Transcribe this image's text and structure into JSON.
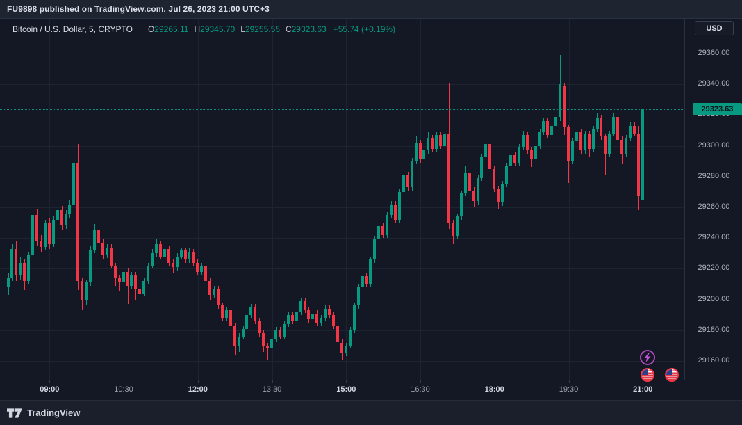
{
  "published_bar": {
    "text": "FU9898 published on TradingView.com, Jul 26, 2023 21:00 UTC+3"
  },
  "legend": {
    "symbol": "Bitcoin / U.S. Dollar, 5, CRYPTO",
    "o": {
      "label": "O",
      "value": "29265.11"
    },
    "h": {
      "label": "H",
      "value": "29345.70"
    },
    "l": {
      "label": "L",
      "value": "29255.55"
    },
    "c": {
      "label": "C",
      "value": "29323.63"
    },
    "change": "+55.74 (+0.19%)"
  },
  "currency_button": {
    "label": "USD"
  },
  "price_tag": {
    "text": "29323.63"
  },
  "footer": {
    "brand": "TradingView"
  },
  "colors": {
    "up": "#089981",
    "down": "#f23645",
    "background": "#141824",
    "grid": "#1e2330",
    "axis_text": "#aeb2bd",
    "price_line": "#089981",
    "event_purple": "#ab47bc",
    "event_red": "#f23645"
  },
  "event_icons": [
    {
      "name": "lightning-event",
      "symbol": "lightning"
    },
    {
      "name": "us-economic-event-1",
      "symbol": "us-flag"
    },
    {
      "name": "us-economic-event-2",
      "symbol": "us-flag"
    }
  ],
  "chart_data": {
    "type": "candlestick",
    "title": "Bitcoin / U.S. Dollar, 5, CRYPTO",
    "interval_minutes": 5,
    "start_time": "08:10",
    "end_time": "21:00",
    "last_price": 29323.63,
    "ylim": [
      29150,
      29368
    ],
    "grid": true,
    "y_ticks": [
      {
        "label": "29360.00",
        "price": 29360
      },
      {
        "label": "29340.00",
        "price": 29340
      },
      {
        "label": "29320.00",
        "price": 29320
      },
      {
        "label": "29300.00",
        "price": 29300
      },
      {
        "label": "29280.00",
        "price": 29280
      },
      {
        "label": "29260.00",
        "price": 29260
      },
      {
        "label": "29240.00",
        "price": 29240
      },
      {
        "label": "29220.00",
        "price": 29220
      },
      {
        "label": "29200.00",
        "price": 29200
      },
      {
        "label": "29180.00",
        "price": 29180
      },
      {
        "label": "29160.00",
        "price": 29160
      }
    ],
    "x_ticks": [
      {
        "label": "09:00",
        "index": 10,
        "bold": true
      },
      {
        "label": "10:30",
        "index": 28,
        "bold": false
      },
      {
        "label": "12:00",
        "index": 46,
        "bold": true
      },
      {
        "label": "13:30",
        "index": 64,
        "bold": false
      },
      {
        "label": "15:00",
        "index": 82,
        "bold": true
      },
      {
        "label": "16:30",
        "index": 100,
        "bold": false
      },
      {
        "label": "18:00",
        "index": 118,
        "bold": true
      },
      {
        "label": "19:30",
        "index": 136,
        "bold": false
      },
      {
        "label": "21:00",
        "index": 154,
        "bold": true
      }
    ],
    "candles": [
      [
        29208,
        29217,
        29203,
        29214
      ],
      [
        29214,
        29236,
        29212,
        29233
      ],
      [
        29233,
        29238,
        29212,
        29216
      ],
      [
        29216,
        29228,
        29213,
        29224
      ],
      [
        29224,
        29226,
        29206,
        29212
      ],
      [
        29212,
        29231,
        29210,
        29229
      ],
      [
        29229,
        29258,
        29227,
        29255
      ],
      [
        29255,
        29259,
        29235,
        29238
      ],
      [
        29238,
        29242,
        29231,
        29234
      ],
      [
        29234,
        29252,
        29232,
        29250
      ],
      [
        29250,
        29253,
        29233,
        29236
      ],
      [
        29236,
        29254,
        29234,
        29252
      ],
      [
        29252,
        29263,
        29250,
        29258
      ],
      [
        29258,
        29261,
        29245,
        29248
      ],
      [
        29248,
        29258,
        29246,
        29256
      ],
      [
        29256,
        29265,
        29253,
        29262
      ],
      [
        29262,
        29291,
        29260,
        29289
      ],
      [
        29289,
        29301,
        29206,
        29212
      ],
      [
        29212,
        29214,
        29193,
        29200
      ],
      [
        29200,
        29213,
        29196,
        29211
      ],
      [
        29211,
        29235,
        29209,
        29232
      ],
      [
        29232,
        29249,
        29230,
        29245
      ],
      [
        29245,
        29248,
        29235,
        29237
      ],
      [
        29237,
        29239,
        29226,
        29229
      ],
      [
        29229,
        29236,
        29227,
        29234
      ],
      [
        29234,
        29236,
        29220,
        29222
      ],
      [
        29222,
        29224,
        29209,
        29214
      ],
      [
        29214,
        29216,
        29205,
        29211
      ],
      [
        29211,
        29220,
        29209,
        29218
      ],
      [
        29218,
        29220,
        29197,
        29209
      ],
      [
        29209,
        29218,
        29207,
        29216
      ],
      [
        29216,
        29218,
        29200,
        29207
      ],
      [
        29207,
        29209,
        29196,
        29204
      ],
      [
        29204,
        29214,
        29202,
        29212
      ],
      [
        29212,
        29224,
        29210,
        29222
      ],
      [
        29222,
        29233,
        29220,
        29230
      ],
      [
        29230,
        29239,
        29228,
        29236
      ],
      [
        29236,
        29238,
        29226,
        29228
      ],
      [
        29228,
        29235,
        29226,
        29233
      ],
      [
        29233,
        29235,
        29222,
        29224
      ],
      [
        29224,
        29226,
        29217,
        29221
      ],
      [
        29221,
        29230,
        29219,
        29228
      ],
      [
        29228,
        29234,
        29226,
        29232
      ],
      [
        29232,
        29234,
        29224,
        29226
      ],
      [
        29226,
        29234,
        29224,
        29231
      ],
      [
        29231,
        29233,
        29222,
        29224
      ],
      [
        29224,
        29226,
        29216,
        29218
      ],
      [
        29218,
        29224,
        29216,
        29222
      ],
      [
        29222,
        29224,
        29210,
        29212
      ],
      [
        29212,
        29214,
        29200,
        29203
      ],
      [
        29203,
        29209,
        29201,
        29207
      ],
      [
        29207,
        29209,
        29194,
        29196
      ],
      [
        29196,
        29198,
        29186,
        29188
      ],
      [
        29188,
        29195,
        29186,
        29193
      ],
      [
        29193,
        29195,
        29181,
        29183
      ],
      [
        29183,
        29185,
        29164,
        29170
      ],
      [
        29170,
        29178,
        29166,
        29176
      ],
      [
        29176,
        29183,
        29174,
        29181
      ],
      [
        29181,
        29192,
        29179,
        29190
      ],
      [
        29190,
        29197,
        29188,
        29195
      ],
      [
        29195,
        29197,
        29184,
        29186
      ],
      [
        29186,
        29188,
        29176,
        29178
      ],
      [
        29178,
        29180,
        29166,
        29170
      ],
      [
        29170,
        29172,
        29161,
        29168
      ],
      [
        29168,
        29176,
        29163,
        29174
      ],
      [
        29174,
        29182,
        29172,
        29180
      ],
      [
        29180,
        29182,
        29174,
        29176
      ],
      [
        29176,
        29186,
        29174,
        29184
      ],
      [
        29184,
        29192,
        29182,
        29190
      ],
      [
        29190,
        29192,
        29184,
        29186
      ],
      [
        29186,
        29194,
        29184,
        29192
      ],
      [
        29192,
        29201,
        29190,
        29199
      ],
      [
        29199,
        29201,
        29191,
        29193
      ],
      [
        29193,
        29195,
        29185,
        29187
      ],
      [
        29187,
        29193,
        29185,
        29191
      ],
      [
        29191,
        29193,
        29183,
        29185
      ],
      [
        29185,
        29190,
        29183,
        29188
      ],
      [
        29188,
        29196,
        29186,
        29194
      ],
      [
        29194,
        29196,
        29188,
        29190
      ],
      [
        29190,
        29192,
        29181,
        29183
      ],
      [
        29183,
        29185,
        29170,
        29172
      ],
      [
        29172,
        29174,
        29161,
        29165
      ],
      [
        29165,
        29172,
        29163,
        29170
      ],
      [
        29170,
        29182,
        29168,
        29180
      ],
      [
        29180,
        29198,
        29178,
        29196
      ],
      [
        29196,
        29210,
        29194,
        29208
      ],
      [
        29208,
        29217,
        29206,
        29215
      ],
      [
        29215,
        29217,
        29208,
        29210
      ],
      [
        29210,
        29228,
        29208,
        29226
      ],
      [
        29226,
        29241,
        29224,
        29239
      ],
      [
        29239,
        29250,
        29237,
        29248
      ],
      [
        29248,
        29250,
        29240,
        29242
      ],
      [
        29242,
        29257,
        29240,
        29255
      ],
      [
        29255,
        29264,
        29253,
        29262
      ],
      [
        29262,
        29264,
        29250,
        29252
      ],
      [
        29252,
        29272,
        29250,
        29270
      ],
      [
        29270,
        29283,
        29268,
        29281
      ],
      [
        29281,
        29283,
        29271,
        29273
      ],
      [
        29273,
        29292,
        29271,
        29290
      ],
      [
        29290,
        29306,
        29288,
        29302
      ],
      [
        29302,
        29304,
        29289,
        29291
      ],
      [
        29291,
        29299,
        29289,
        29297
      ],
      [
        29297,
        29309,
        29295,
        29305
      ],
      [
        29305,
        29307,
        29296,
        29298
      ],
      [
        29298,
        29309,
        29296,
        29307
      ],
      [
        29307,
        29309,
        29298,
        29300
      ],
      [
        29300,
        29312,
        29298,
        29308
      ],
      [
        29308,
        29341,
        29246,
        29250
      ],
      [
        29250,
        29252,
        29236,
        29241
      ],
      [
        29241,
        29256,
        29239,
        29254
      ],
      [
        29254,
        29271,
        29252,
        29269
      ],
      [
        29269,
        29287,
        29267,
        29282
      ],
      [
        29282,
        29284,
        29269,
        29271
      ],
      [
        29271,
        29273,
        29260,
        29264
      ],
      [
        29264,
        29281,
        29262,
        29279
      ],
      [
        29279,
        29295,
        29277,
        29293
      ],
      [
        29293,
        29304,
        29291,
        29301
      ],
      [
        29301,
        29303,
        29283,
        29285
      ],
      [
        29285,
        29287,
        29270,
        29272
      ],
      [
        29272,
        29274,
        29259,
        29263
      ],
      [
        29263,
        29277,
        29261,
        29275
      ],
      [
        29275,
        29289,
        29273,
        29287
      ],
      [
        29287,
        29298,
        29285,
        29294
      ],
      [
        29294,
        29296,
        29287,
        29289
      ],
      [
        29289,
        29301,
        29287,
        29299
      ],
      [
        29299,
        29310,
        29297,
        29307
      ],
      [
        29307,
        29309,
        29295,
        29297
      ],
      [
        29297,
        29299,
        29286,
        29291
      ],
      [
        29291,
        29302,
        29289,
        29300
      ],
      [
        29300,
        29311,
        29298,
        29309
      ],
      [
        29309,
        29318,
        29307,
        29316
      ],
      [
        29316,
        29318,
        29305,
        29307
      ],
      [
        29307,
        29315,
        29305,
        29313
      ],
      [
        29313,
        29323,
        29311,
        29319
      ],
      [
        29319,
        29359,
        29316,
        29340
      ],
      [
        29339,
        29341,
        29307,
        29312
      ],
      [
        29312,
        29314,
        29276,
        29290
      ],
      [
        29290,
        29305,
        29288,
        29303
      ],
      [
        29303,
        29330,
        29301,
        29309
      ],
      [
        29309,
        29311,
        29295,
        29297
      ],
      [
        29297,
        29310,
        29295,
        29308
      ],
      [
        29308,
        29310,
        29293,
        29298
      ],
      [
        29298,
        29313,
        29296,
        29311
      ],
      [
        29311,
        29321,
        29309,
        29318
      ],
      [
        29318,
        29320,
        29304,
        29306
      ],
      [
        29306,
        29308,
        29281,
        29295
      ],
      [
        29295,
        29310,
        29293,
        29308
      ],
      [
        29308,
        29321,
        29306,
        29319
      ],
      [
        29319,
        29321,
        29302,
        29304
      ],
      [
        29304,
        29306,
        29288,
        29295
      ],
      [
        29295,
        29307,
        29293,
        29305
      ],
      [
        29305,
        29315,
        29303,
        29313
      ],
      [
        29313,
        29315,
        29306,
        29308
      ],
      [
        29308,
        29313,
        29258,
        29267
      ],
      [
        29265.11,
        29345.7,
        29255.55,
        29323.63
      ]
    ]
  }
}
